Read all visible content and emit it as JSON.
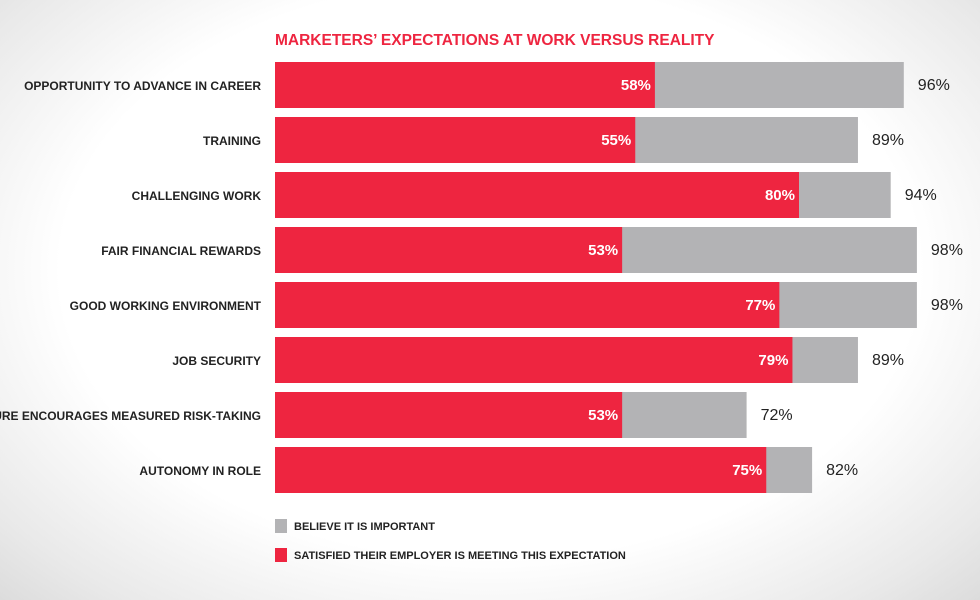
{
  "chart_data": {
    "type": "bar",
    "orientation": "horizontal",
    "stacked": "overlay",
    "title": "MARKETERS’ EXPECTATIONS AT WORK VERSUS REALITY",
    "categories": [
      "OPPORTUNITY TO ADVANCE IN CAREER",
      "TRAINING",
      "CHALLENGING WORK",
      "FAIR FINANCIAL REWARDS",
      "GOOD WORKING ENVIRONMENT",
      "JOB SECURITY",
      "CULTURE ENCOURAGES MEASURED RISK-TAKING",
      "AUTONOMY IN ROLE"
    ],
    "series": [
      {
        "name": "BELIEVE IT IS IMPORTANT",
        "values": [
          96,
          89,
          94,
          98,
          98,
          89,
          72,
          82
        ],
        "labels": [
          "96%",
          "89%",
          "94%",
          "98%",
          "98%",
          "89%",
          "72%",
          "82%"
        ],
        "color": "#b3b3b5"
      },
      {
        "name": "SATISFIED THEIR EMPLOYER IS MEETING THIS EXPECTATION",
        "values": [
          58,
          55,
          80,
          53,
          77,
          79,
          53,
          75
        ],
        "labels": [
          "58%",
          "55%",
          "80%",
          "53%",
          "77%",
          "79%",
          "53%",
          "75%"
        ],
        "color": "#ee2540"
      }
    ],
    "xlim": [
      0,
      100
    ],
    "grid": false,
    "legend_position": "bottom-left"
  },
  "colors": {
    "title": "#ee2540",
    "text": "#222222",
    "bar_label": "#ffffff"
  }
}
